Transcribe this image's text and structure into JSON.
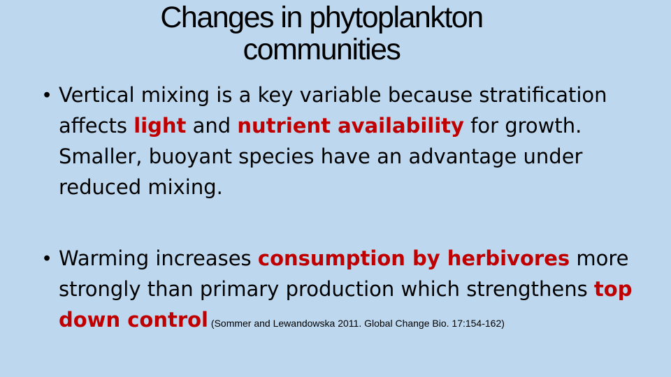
{
  "slide": {
    "title_line1": "Changes in phytoplankton",
    "title_line2": "communities",
    "bullet_char": "•",
    "bullet1": {
      "pre": "Vertical mixing is a key variable because stratification affects ",
      "highlight1": "light",
      "mid": " and ",
      "highlight2": "nutrient availability",
      "post": " for growth.  Smaller, buoyant species have an advantage under reduced mixing."
    },
    "bullet2": {
      "pre": "Warming increases ",
      "highlight1": "consumption by herbivores",
      "mid": " more strongly than primary production which strengthens ",
      "highlight2": "top down control",
      "citation": " (Sommer and Lewandowska 2011.  Global Change Bio. 17:154-162)"
    }
  },
  "colors": {
    "background": "#bdd7ee",
    "highlight": "#c00000"
  }
}
